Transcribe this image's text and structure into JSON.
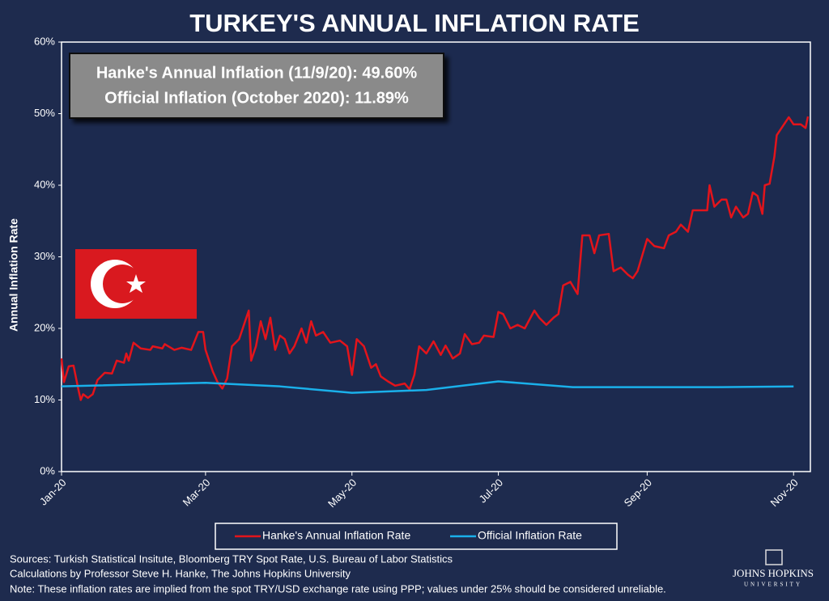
{
  "chart_data": {
    "type": "line",
    "title": "TURKEY'S ANNUAL INFLATION RATE",
    "annotations": [
      "Hanke's Annual Inflation (11/9/20): 49.60%",
      "Official Inflation (October 2020): 11.89%"
    ],
    "ylabel": "Annual Inflation Rate",
    "ylim": [
      0,
      60
    ],
    "yticks": [
      {
        "value": 0,
        "label": "0%"
      },
      {
        "value": 10,
        "label": "10%"
      },
      {
        "value": 20,
        "label": "20%"
      },
      {
        "value": 30,
        "label": "30%"
      },
      {
        "value": 40,
        "label": "40%"
      },
      {
        "value": 50,
        "label": "50%"
      },
      {
        "value": 60,
        "label": "60%"
      }
    ],
    "xlim": [
      0,
      312
    ],
    "xticks": [
      {
        "value": 0,
        "label": "Jan-20"
      },
      {
        "value": 60,
        "label": "Mar-20"
      },
      {
        "value": 121,
        "label": "May-20"
      },
      {
        "value": 182,
        "label": "Jul-20"
      },
      {
        "value": 244,
        "label": "Sep-20"
      },
      {
        "value": 305,
        "label": "Nov-20"
      }
    ],
    "grid": false,
    "series": [
      {
        "name": "Hanke's Annual Inflation Rate",
        "color": "#e3141b",
        "x": [
          0,
          1,
          3,
          5,
          7,
          8,
          9,
          11,
          13,
          15,
          18,
          21,
          23,
          26,
          27,
          28,
          30,
          33,
          37,
          38,
          42,
          43,
          47,
          50,
          54,
          57,
          59,
          60,
          63,
          65,
          67,
          69,
          71,
          74,
          76,
          78,
          79,
          81,
          83,
          85,
          87,
          89,
          91,
          93,
          95,
          97,
          100,
          102,
          104,
          106,
          109,
          112,
          116,
          119,
          121,
          123,
          126,
          129,
          131,
          133,
          136,
          139,
          143,
          145,
          147,
          149,
          152,
          155,
          158,
          160,
          163,
          166,
          168,
          171,
          174,
          176,
          180,
          182,
          184,
          187,
          190,
          193,
          197,
          199,
          202,
          205,
          207,
          209,
          212,
          215,
          217,
          220,
          222,
          224,
          228,
          230,
          233,
          236,
          238,
          240,
          244,
          247,
          251,
          253,
          256,
          258,
          261,
          263,
          266,
          269,
          270,
          272,
          275,
          277,
          279,
          281,
          284,
          286,
          288,
          290,
          292,
          293,
          295,
          297,
          298,
          300,
          303,
          305,
          308,
          310,
          311
        ],
        "values": [
          15.8,
          12.5,
          14.7,
          14.8,
          11.5,
          10,
          10.8,
          10.3,
          10.8,
          12.8,
          13.8,
          13.7,
          15.5,
          15.2,
          16.5,
          15.5,
          18,
          17.2,
          17,
          17.5,
          17.2,
          17.8,
          17,
          17.3,
          17,
          19.5,
          19.5,
          17,
          14,
          12.5,
          11.6,
          13,
          17.5,
          18.5,
          20.5,
          22.5,
          15.5,
          17.5,
          21,
          18.5,
          21.5,
          17,
          19,
          18.5,
          16.5,
          17.5,
          20,
          18,
          21,
          19,
          19.5,
          18,
          18.3,
          17.5,
          13.5,
          18.5,
          17.5,
          14.5,
          15,
          13.3,
          12.6,
          12,
          12.3,
          11.5,
          13.5,
          17.5,
          16.5,
          18.2,
          16.3,
          17.6,
          15.8,
          16.5,
          19.2,
          17.8,
          18,
          19,
          18.8,
          22.3,
          22,
          20,
          20.5,
          20,
          22.5,
          21.5,
          20.5,
          21.5,
          22,
          26,
          26.5,
          24.8,
          33,
          33,
          30.5,
          33,
          33.2,
          28,
          28.5,
          27.5,
          27,
          28,
          32.5,
          31.5,
          31.2,
          33,
          33.5,
          34.5,
          33.5,
          36.5,
          36.5,
          36.5,
          40,
          37,
          38,
          38,
          35.5,
          37,
          35.5,
          36,
          39,
          38.5,
          36,
          40,
          40.2,
          44,
          47,
          48,
          49.5,
          48.5,
          48.5,
          48,
          49.6
        ]
      },
      {
        "name": "Official Inflation Rate",
        "color": "#1ab0ea",
        "x": [
          0,
          60,
          91,
          121,
          152,
          182,
          213,
          244,
          274,
          305
        ],
        "values": [
          11.9,
          12.4,
          11.9,
          11,
          11.4,
          12.6,
          11.8,
          11.8,
          11.8,
          11.89
        ]
      }
    ],
    "legend": "bottom",
    "notes": [
      "Sources: Turkish Statistical Insitute, Bloomberg TRY Spot Rate, U.S. Bureau of Labor Statistics",
      "Calculations by Professor Steve H. Hanke, The Johns Hopkins University",
      "Note: These inflation rates are implied from the spot TRY/USD exchange rate using PPP; values under 25% should be considered unreliable."
    ],
    "logo": [
      "JOHNS HOPKINS",
      "UNIVERSITY"
    ]
  }
}
